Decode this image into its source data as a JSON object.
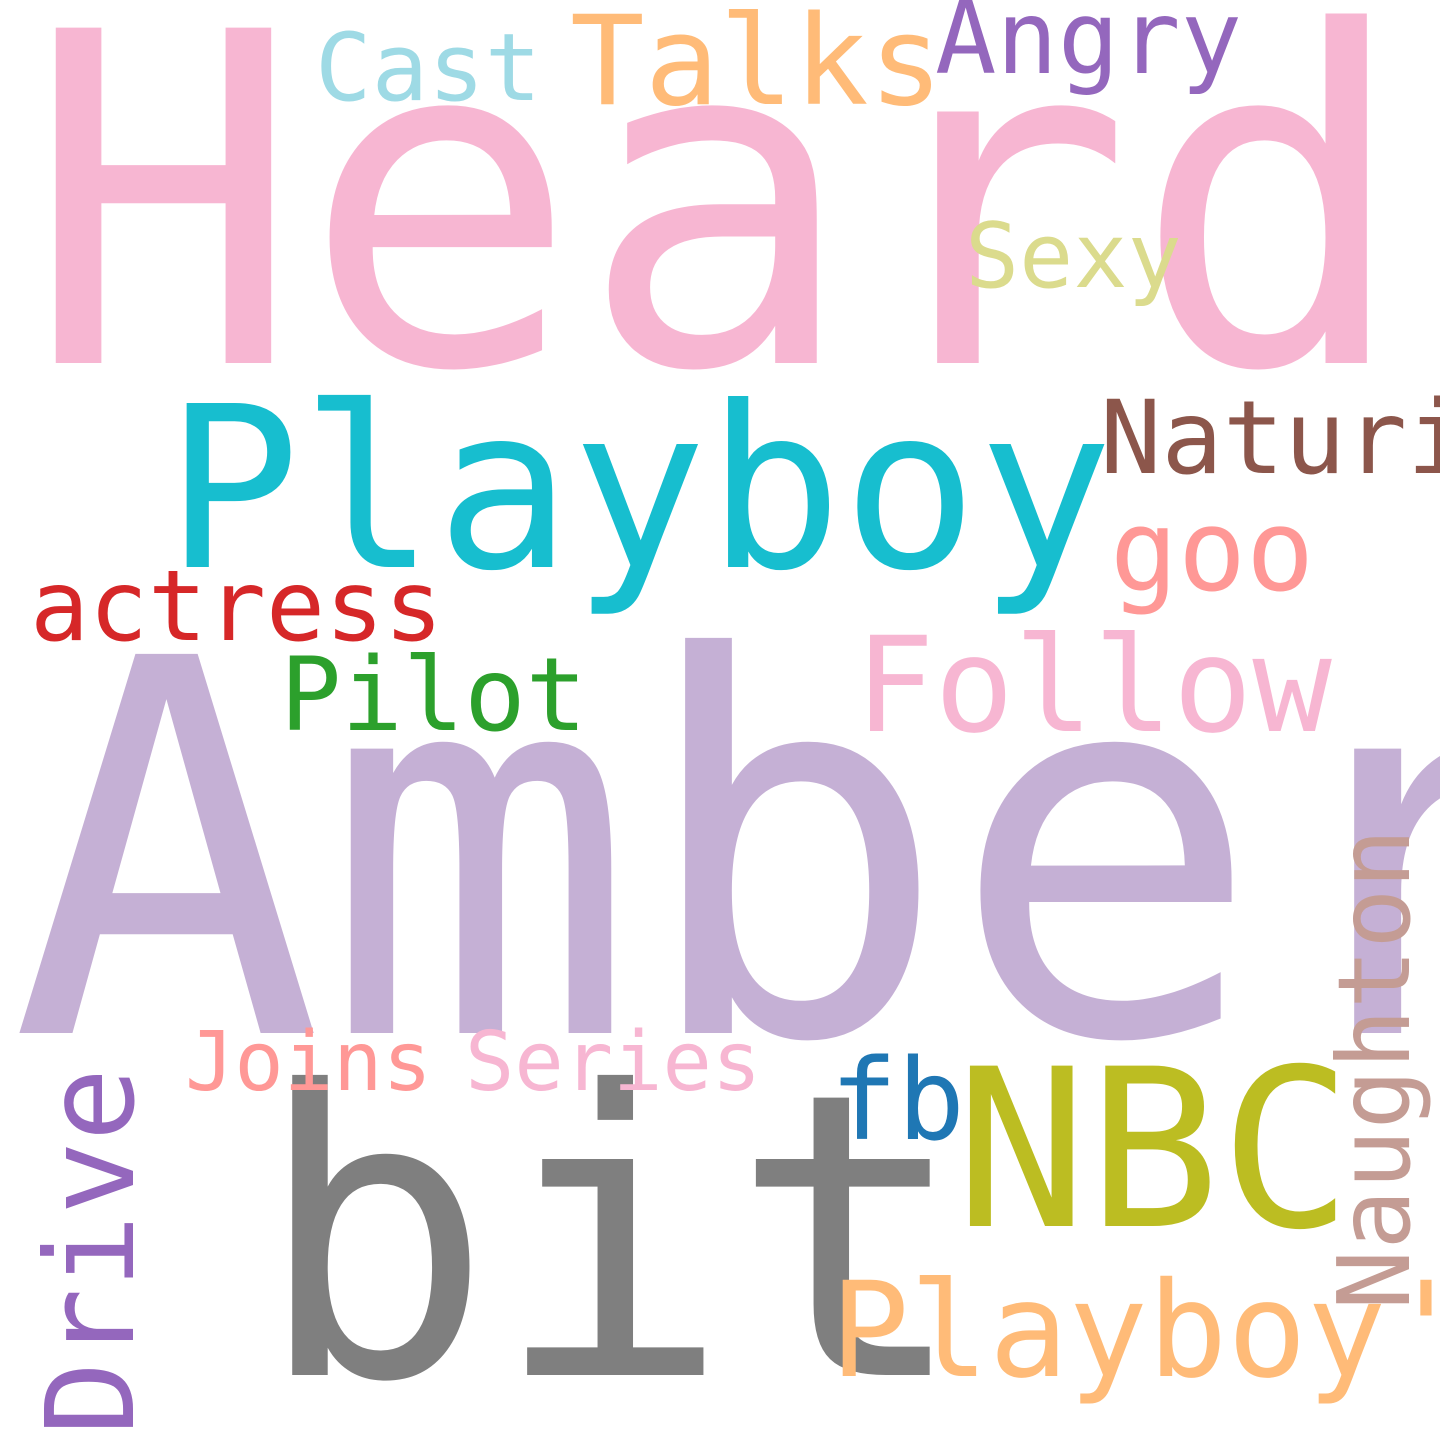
{
  "words": [
    {
      "text": "Heard",
      "color": "#f7b6d2"
    },
    {
      "text": "Amber",
      "color": "#c5b0d5"
    },
    {
      "text": "Playboy",
      "color": "#17becf"
    },
    {
      "text": "bit",
      "color": "#7f7f7f"
    },
    {
      "text": "NBC",
      "color": "#bcbd22"
    },
    {
      "text": "Playboy'",
      "color": "#ffbb78"
    },
    {
      "text": "Follow",
      "color": "#f7b6d2"
    },
    {
      "text": "Talks",
      "color": "#ffbb78"
    },
    {
      "text": "Angry",
      "color": "#9467bd"
    },
    {
      "text": "Cast",
      "color": "#9edae5"
    },
    {
      "text": "Sexy",
      "color": "#dbdb8d"
    },
    {
      "text": "Naturi",
      "color": "#8c564b"
    },
    {
      "text": "goo",
      "color": "#ff9896"
    },
    {
      "text": "actress",
      "color": "#d62728"
    },
    {
      "text": "Pilot",
      "color": "#2ca02c"
    },
    {
      "text": "Joins",
      "color": "#ff9896"
    },
    {
      "text": "Series",
      "color": "#f7b6d2"
    },
    {
      "text": "fb",
      "color": "#1f77b4"
    },
    {
      "text": "Drive",
      "color": "#9467bd"
    },
    {
      "text": "Naughton",
      "color": "#c49c94"
    }
  ]
}
